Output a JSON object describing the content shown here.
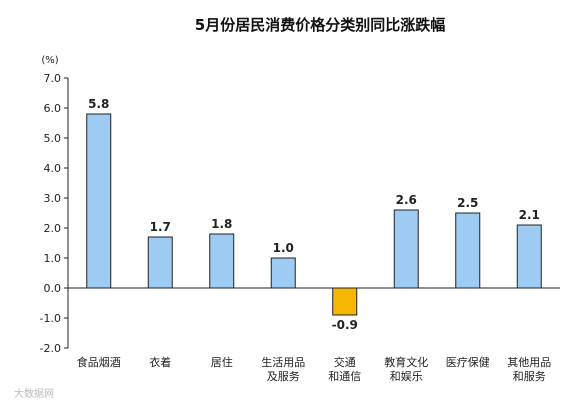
{
  "chart_data": {
    "type": "bar",
    "title": "5月份居民消费价格分类别同比涨跌幅",
    "ylabel": "(%)",
    "ylim": [
      -2.0,
      7.0
    ],
    "yticks": [
      "7.0",
      "6.0",
      "5.0",
      "4.0",
      "3.0",
      "2.0",
      "1.0",
      "0.0",
      "-1.0",
      "-2.0"
    ],
    "categories": [
      [
        "食品烟酒"
      ],
      [
        "衣着"
      ],
      [
        "居住"
      ],
      [
        "生活用品",
        "及服务"
      ],
      [
        "交通",
        "和通信"
      ],
      [
        "教育文化",
        "和娱乐"
      ],
      [
        "医疗保健"
      ],
      [
        "其他用品",
        "和服务"
      ]
    ],
    "values": [
      5.8,
      1.7,
      1.8,
      1.0,
      -0.9,
      2.6,
      2.5,
      2.1
    ],
    "data_labels": [
      "5.8",
      "1.7",
      "1.8",
      "1.0",
      "-0.9",
      "2.6",
      "2.5",
      "2.1"
    ],
    "grid": false,
    "colors": {
      "positive": "#9DCBF2",
      "negative": "#F5B800",
      "stroke": "#222222"
    }
  },
  "watermark": "大数据网"
}
